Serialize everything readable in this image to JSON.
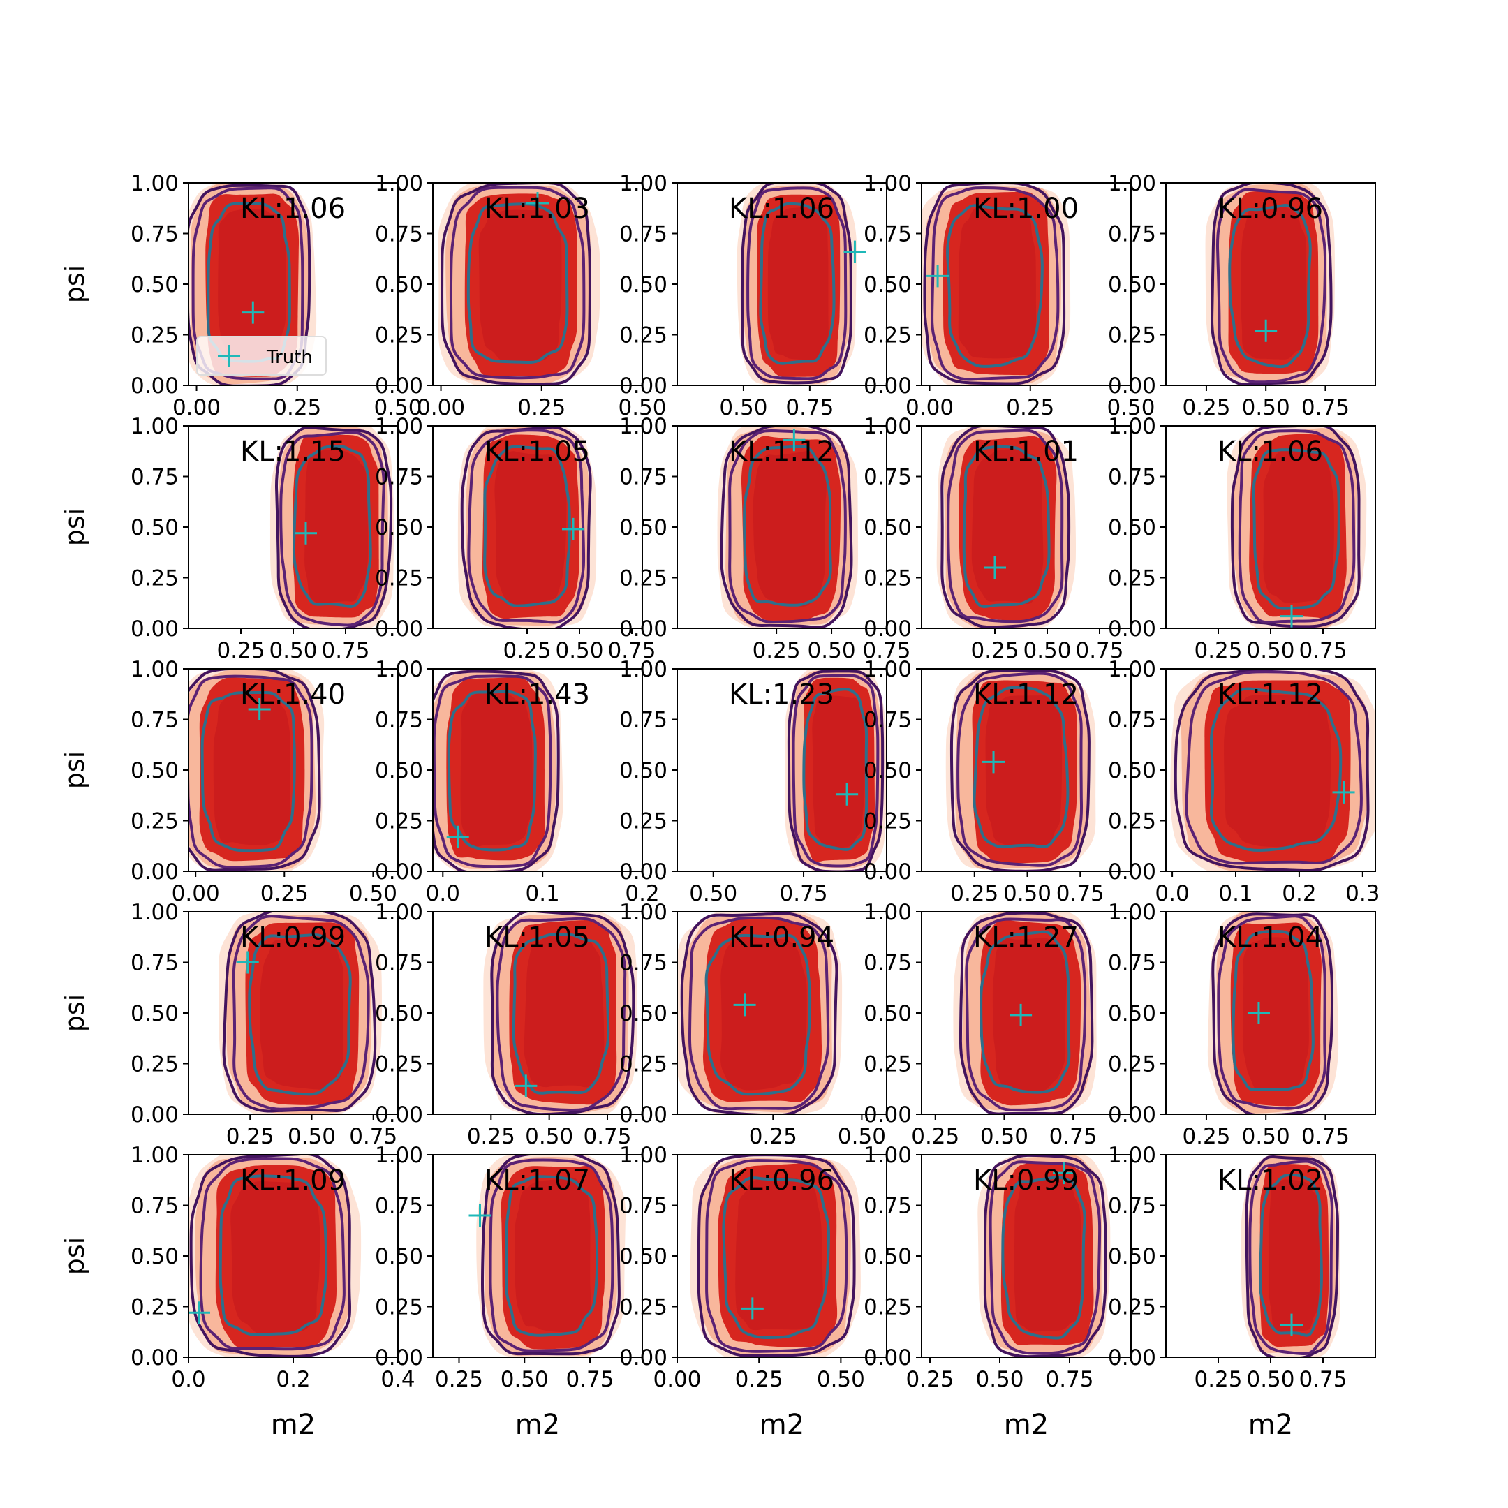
{
  "chart_data": {
    "type": "contour",
    "grid": {
      "rows": 5,
      "cols": 5
    },
    "xlabel": "m2",
    "ylabel": "psi",
    "legend": {
      "label": "Truth",
      "placement": "lower-left of first panel"
    },
    "colors": {
      "fill_light": "#fde3d6",
      "fill_mid": "#f8b79c",
      "fill_dark": "#d7261f",
      "fill_darkest": "#c3161c",
      "line_outer": "#43145e",
      "line_mid": "#5b2274",
      "line_inner": "#2e6f8b",
      "truth": "#1fb8b8"
    },
    "panels": [
      {
        "kl": "KL:1.06",
        "xticks": [
          "0.00",
          "0.25",
          "0.50"
        ],
        "tickvals": [
          0,
          0.25,
          0.5
        ],
        "xlim": [
          -0.02,
          0.5
        ],
        "truth": [
          0.14,
          0.36
        ],
        "center": [
          0.13
        ],
        "halfwidth": 0.14
      },
      {
        "kl": "KL:1.03",
        "xticks": [
          "0.00",
          "0.25",
          "0.50"
        ],
        "tickvals": [
          0,
          0.25,
          0.5
        ],
        "xlim": [
          -0.02,
          0.5
        ],
        "truth": [
          0.24,
          0.9
        ],
        "center": [
          0.19
        ],
        "halfwidth": 0.17
      },
      {
        "kl": "KL:1.06",
        "xticks": [
          "0.50",
          "0.75"
        ],
        "tickvals": [
          0.5,
          0.75
        ],
        "xlim": [
          0.25,
          1.04
        ],
        "truth": [
          0.92,
          0.66
        ],
        "center": [
          0.7
        ],
        "halfwidth": 0.19
      },
      {
        "kl": "KL:1.00",
        "xticks": [
          "0.00",
          "0.25",
          "0.50"
        ],
        "tickvals": [
          0,
          0.25,
          0.5
        ],
        "xlim": [
          -0.02,
          0.5
        ],
        "truth": [
          0.02,
          0.54
        ],
        "center": [
          0.16
        ],
        "halfwidth": 0.16
      },
      {
        "kl": "KL:0.96",
        "xticks": [
          "0.25",
          "0.50",
          "0.75"
        ],
        "tickvals": [
          0.25,
          0.5,
          0.75
        ],
        "xlim": [
          0.08,
          0.96
        ],
        "truth": [
          0.5,
          0.27
        ],
        "center": [
          0.52
        ],
        "halfwidth": 0.23
      },
      {
        "kl": "KL:1.15",
        "xticks": [
          "0.25",
          "0.50",
          "0.75"
        ],
        "tickvals": [
          0.25,
          0.5,
          0.75
        ],
        "xlim": [
          0.0,
          1.0
        ],
        "truth": [
          0.56,
          0.47
        ],
        "center": [
          0.69
        ],
        "halfwidth": 0.25
      },
      {
        "kl": "KL:1.05",
        "xticks": [
          "0.25",
          "0.50",
          "0.75"
        ],
        "tickvals": [
          0.25,
          0.5,
          0.75
        ],
        "xlim": [
          -0.2,
          0.8
        ],
        "truth": [
          0.47,
          0.49
        ],
        "center": [
          0.25
        ],
        "halfwidth": 0.28
      },
      {
        "kl": "KL:1.12",
        "xticks": [
          "0.25",
          "0.50",
          "0.75"
        ],
        "tickvals": [
          0.25,
          0.5,
          0.75
        ],
        "xlim": [
          -0.2,
          0.75
        ],
        "truth": [
          0.33,
          0.93
        ],
        "center": [
          0.3
        ],
        "halfwidth": 0.27
      },
      {
        "kl": "KL:1.01",
        "xticks": [
          "0.25",
          "0.50",
          "0.75"
        ],
        "tickvals": [
          0.25,
          0.5,
          0.75
        ],
        "xlim": [
          -0.1,
          0.9
        ],
        "truth": [
          0.25,
          0.3
        ],
        "center": [
          0.3
        ],
        "halfwidth": 0.28
      },
      {
        "kl": "KL:1.06",
        "xticks": [
          "0.25",
          "0.50",
          "0.75"
        ],
        "tickvals": [
          0.25,
          0.5,
          0.75
        ],
        "xlim": [
          0.0,
          1.0
        ],
        "truth": [
          0.6,
          0.06
        ],
        "center": [
          0.62
        ],
        "halfwidth": 0.28
      },
      {
        "kl": "KL:1.40",
        "xticks": [
          "0.00",
          "0.25",
          "0.50"
        ],
        "tickvals": [
          0,
          0.25,
          0.5
        ],
        "xlim": [
          -0.02,
          0.57
        ],
        "truth": [
          0.18,
          0.8
        ],
        "center": [
          0.15
        ],
        "halfwidth": 0.18
      },
      {
        "kl": "KL:1.43",
        "xticks": [
          "0.0",
          "0.1",
          "0.2"
        ],
        "tickvals": [
          0,
          0.1,
          0.2
        ],
        "xlim": [
          -0.01,
          0.2
        ],
        "truth": [
          0.015,
          0.17
        ],
        "center": [
          0.05
        ],
        "halfwidth": 0.06
      },
      {
        "kl": "KL:1.23",
        "xticks": [
          "0.50",
          "0.75"
        ],
        "tickvals": [
          0.5,
          0.75
        ],
        "xlim": [
          0.4,
          0.98
        ],
        "truth": [
          0.87,
          0.38
        ],
        "center": [
          0.84
        ],
        "halfwidth": 0.12
      },
      {
        "kl": "KL:1.12",
        "xticks": [
          "0.25",
          "0.50",
          "0.75"
        ],
        "tickvals": [
          0.25,
          0.5,
          0.75
        ],
        "xlim": [
          0.0,
          0.99
        ],
        "truth": [
          0.34,
          0.54
        ],
        "center": [
          0.47
        ],
        "halfwidth": 0.3
      },
      {
        "kl": "KL:1.12",
        "xticks": [
          "0.0",
          "0.1",
          "0.2",
          "0.3"
        ],
        "tickvals": [
          0,
          0.1,
          0.2,
          0.3
        ],
        "xlim": [
          -0.01,
          0.32
        ],
        "truth": [
          0.27,
          0.39
        ],
        "center": [
          0.16
        ],
        "halfwidth": 0.14
      },
      {
        "kl": "KL:0.99",
        "xticks": [
          "0.25",
          "0.50",
          "0.75"
        ],
        "tickvals": [
          0.25,
          0.5,
          0.75
        ],
        "xlim": [
          0.0,
          0.85
        ],
        "truth": [
          0.24,
          0.75
        ],
        "center": [
          0.45
        ],
        "halfwidth": 0.28
      },
      {
        "kl": "KL:1.05",
        "xticks": [
          "0.25",
          "0.50",
          "0.75"
        ],
        "tickvals": [
          0.25,
          0.5,
          0.75
        ],
        "xlim": [
          0.0,
          0.9
        ],
        "truth": [
          0.4,
          0.14
        ],
        "center": [
          0.55
        ],
        "halfwidth": 0.28
      },
      {
        "kl": "KL:0.94",
        "xticks": [
          "0.25",
          "0.50"
        ],
        "tickvals": [
          0.25,
          0.5
        ],
        "xlim": [
          -0.02,
          0.57
        ],
        "truth": [
          0.17,
          0.54
        ],
        "center": [
          0.21
        ],
        "halfwidth": 0.2
      },
      {
        "kl": "KL:1.27",
        "xticks": [
          "0.25",
          "0.50",
          "0.75"
        ],
        "tickvals": [
          0.25,
          0.5,
          0.75
        ],
        "xlim": [
          0.2,
          0.96
        ],
        "truth": [
          0.56,
          0.49
        ],
        "center": [
          0.58
        ],
        "halfwidth": 0.22
      },
      {
        "kl": "KL:1.04",
        "xticks": [
          "0.25",
          "0.50",
          "0.75"
        ],
        "tickvals": [
          0.25,
          0.5,
          0.75
        ],
        "xlim": [
          0.08,
          0.96
        ],
        "truth": [
          0.47,
          0.5
        ],
        "center": [
          0.53
        ],
        "halfwidth": 0.23
      },
      {
        "kl": "KL:1.09",
        "xticks": [
          "0.0",
          "0.2",
          "0.4"
        ],
        "tickvals": [
          0,
          0.2,
          0.4
        ],
        "xlim": [
          0,
          0.4
        ],
        "truth": [
          0.02,
          0.22
        ],
        "center": [
          0.16
        ],
        "halfwidth": 0.14
      },
      {
        "kl": "KL:1.07",
        "xticks": [
          "0.25",
          "0.50",
          "0.75"
        ],
        "tickvals": [
          0.25,
          0.5,
          0.75
        ],
        "xlim": [
          0.15,
          0.95
        ],
        "truth": [
          0.33,
          0.7
        ],
        "center": [
          0.6
        ],
        "halfwidth": 0.24
      },
      {
        "kl": "KL:0.96",
        "xticks": [
          "0.00",
          "0.25",
          "0.50"
        ],
        "tickvals": [
          0,
          0.25,
          0.5
        ],
        "xlim": [
          0,
          0.64
        ],
        "truth": [
          0.23,
          0.24
        ],
        "center": [
          0.3
        ],
        "halfwidth": 0.22
      },
      {
        "kl": "KL:0.99",
        "xticks": [
          "0.25",
          "0.50",
          "0.75"
        ],
        "tickvals": [
          0.25,
          0.5,
          0.75
        ],
        "xlim": [
          0.22,
          0.97
        ],
        "truth": [
          0.73,
          0.91
        ],
        "center": [
          0.66
        ],
        "halfwidth": 0.2
      },
      {
        "kl": "KL:1.02",
        "xticks": [
          "0.25",
          "0.50",
          "0.75"
        ],
        "tickvals": [
          0.25,
          0.5,
          0.75
        ],
        "xlim": [
          0.0,
          1.0
        ],
        "truth": [
          0.6,
          0.16
        ],
        "center": [
          0.6
        ],
        "halfwidth": 0.2
      }
    ],
    "yticks": [
      "0.00",
      "0.25",
      "0.50",
      "0.75",
      "1.00"
    ],
    "yticks_values": [
      0,
      0.25,
      0.5,
      0.75,
      1.0
    ],
    "ylim": [
      0,
      1
    ]
  }
}
